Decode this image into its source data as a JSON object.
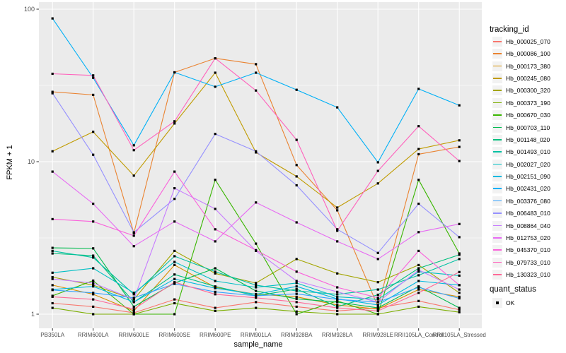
{
  "figure": {
    "background": "#FFFFFF",
    "panel_background": "#EBEBEB",
    "grid_color": "#FFFFFF",
    "tick_color": "#333333",
    "axis_text_color": "#4D4D4D",
    "point_color": "#000000"
  },
  "y_axis": {
    "title": "FPKM + 1",
    "scale": "log10",
    "ticks": [
      "1",
      "10",
      "100"
    ]
  },
  "x_axis": {
    "title": "sample_name"
  },
  "legend": {
    "tracking_title": "tracking_id",
    "quant_title": "quant_status",
    "quant_items": [
      {
        "label": "OK",
        "shape": "square",
        "color": "#000000"
      }
    ]
  },
  "chart_data": {
    "type": "line",
    "title": "",
    "xlabel": "sample_name",
    "ylabel": "FPKM + 1",
    "y_scale": "log10",
    "ylim": [
      0.85,
      110
    ],
    "y_major_ticks": [
      1,
      10,
      100
    ],
    "y_minor_ticks": [
      3.1623,
      31.623
    ],
    "grid": true,
    "legend_position": "right",
    "marker": "filled-square",
    "marker_color": "#000000",
    "categories": [
      "PB350LA",
      "RRIM600LA",
      "RRIM600LE",
      "RRIM600SE",
      "RRIM600PE",
      "RRIM901LA",
      "RRIM928BA",
      "RRIM928LA",
      "RRIM928LE",
      "RRII105LA_Control",
      "RRII105LA_Stressed"
    ],
    "series": [
      {
        "name": "Hb_000025_070",
        "color": "#F8766D",
        "values": [
          1.18,
          1.12,
          1.02,
          1.25,
          1.1,
          1.2,
          1.12,
          1.05,
          1.1,
          1.22,
          1.07
        ]
      },
      {
        "name": "Hb_000086_100",
        "color": "#EA8331",
        "values": [
          28.7,
          27.4,
          3.4,
          38.5,
          47.6,
          43.6,
          9.5,
          4.8,
          1.12,
          11.2,
          12.5
        ]
      },
      {
        "name": "Hb_000173_380",
        "color": "#D89000",
        "values": [
          1.55,
          1.35,
          1.05,
          2.1,
          1.5,
          1.35,
          1.3,
          1.15,
          1.08,
          1.45,
          1.3
        ]
      },
      {
        "name": "Hb_000245_080",
        "color": "#C09B00",
        "values": [
          11.7,
          15.7,
          8.1,
          17.8,
          38.3,
          11.5,
          8.0,
          5.0,
          7.2,
          12.1,
          13.8
        ]
      },
      {
        "name": "Hb_000300_320",
        "color": "#A3A500",
        "values": [
          1.75,
          1.55,
          1.25,
          2.6,
          1.85,
          1.6,
          2.3,
          1.85,
          1.62,
          2.1,
          1.38
        ]
      },
      {
        "name": "Hb_000373_190",
        "color": "#7CAE00",
        "values": [
          1.1,
          1.0,
          1.0,
          1.18,
          1.05,
          1.1,
          1.04,
          1.0,
          1.0,
          1.12,
          1.03
        ]
      },
      {
        "name": "Hb_000670_030",
        "color": "#39B600",
        "values": [
          1.32,
          1.66,
          1.0,
          1.0,
          7.6,
          2.9,
          1.0,
          1.22,
          1.0,
          7.6,
          2.5
        ]
      },
      {
        "name": "Hb_000703_110",
        "color": "#00BB4E",
        "values": [
          2.72,
          2.7,
          1.12,
          1.6,
          2.0,
          1.42,
          1.26,
          1.2,
          1.1,
          1.52,
          1.1
        ]
      },
      {
        "name": "Hb_001148_020",
        "color": "#00BF7D",
        "values": [
          2.5,
          2.42,
          1.2,
          1.82,
          1.52,
          1.32,
          1.46,
          1.12,
          1.34,
          2.0,
          2.45
        ]
      },
      {
        "name": "Hb_001493_010",
        "color": "#00C1A3",
        "values": [
          2.6,
          2.35,
          1.35,
          2.4,
          1.9,
          1.55,
          1.42,
          1.35,
          1.45,
          1.8,
          2.3
        ]
      },
      {
        "name": "Hb_002027_020",
        "color": "#00BFC4",
        "values": [
          1.87,
          2.0,
          1.38,
          2.2,
          1.65,
          1.5,
          1.6,
          1.3,
          1.25,
          1.9,
          1.79
        ]
      },
      {
        "name": "Hb_002151_090",
        "color": "#00BAE0",
        "values": [
          1.45,
          1.52,
          1.2,
          1.7,
          1.48,
          1.35,
          1.52,
          1.26,
          1.15,
          1.65,
          1.55
        ]
      },
      {
        "name": "Hb_002431_020",
        "color": "#00B0F6",
        "values": [
          87.0,
          35.5,
          12.8,
          38.5,
          31.0,
          38.3,
          29.6,
          22.7,
          9.9,
          30.0,
          23.4
        ]
      },
      {
        "name": "Hb_003376_080",
        "color": "#35A2FF",
        "values": [
          1.44,
          1.38,
          1.28,
          1.58,
          1.4,
          1.32,
          1.36,
          1.25,
          1.2,
          1.5,
          1.27
        ]
      },
      {
        "name": "Hb_006483_010",
        "color": "#9590FF",
        "values": [
          28.1,
          11.1,
          3.44,
          5.7,
          15.2,
          11.7,
          7.0,
          3.6,
          2.52,
          5.3,
          3.2
        ]
      },
      {
        "name": "Hb_008864_040",
        "color": "#C77CFF",
        "values": [
          1.7,
          1.6,
          1.25,
          6.7,
          4.9,
          2.6,
          1.65,
          1.4,
          1.2,
          1.95,
          1.45
        ]
      },
      {
        "name": "Hb_012753_020",
        "color": "#E76BF3",
        "values": [
          8.6,
          5.3,
          2.79,
          4.05,
          3.0,
          5.4,
          4.0,
          3.0,
          2.3,
          3.45,
          3.9
        ]
      },
      {
        "name": "Hb_045370_010",
        "color": "#FA62DB",
        "values": [
          4.2,
          4.05,
          3.27,
          8.6,
          3.6,
          2.63,
          1.9,
          1.5,
          1.28,
          2.6,
          1.55
        ]
      },
      {
        "name": "Hb_079733_010",
        "color": "#FF62BC",
        "values": [
          37.7,
          36.8,
          11.9,
          18.4,
          47.6,
          29.3,
          13.9,
          3.52,
          8.7,
          17.1,
          10.1
        ]
      },
      {
        "name": "Hb_130323_010",
        "color": "#FF6A98",
        "values": [
          1.3,
          1.25,
          1.08,
          1.62,
          1.35,
          1.28,
          1.2,
          1.1,
          1.05,
          1.38,
          1.89
        ]
      }
    ]
  }
}
